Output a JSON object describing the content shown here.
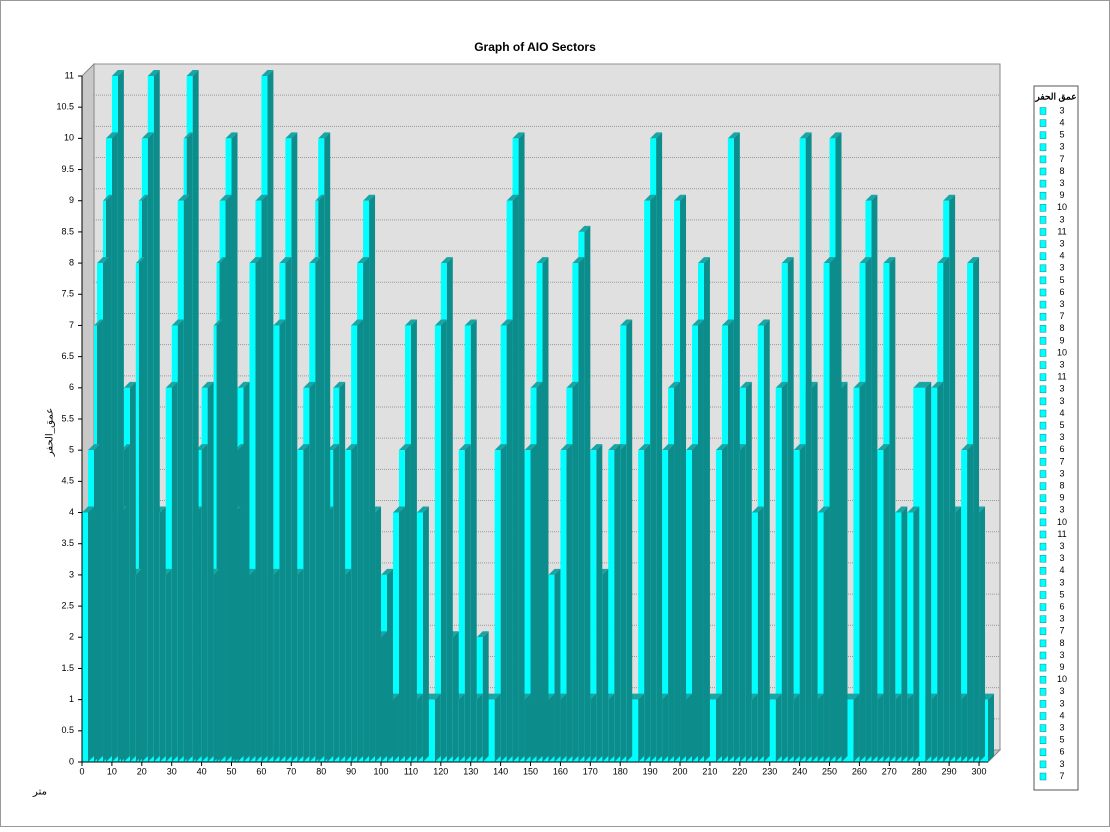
{
  "chart_data": {
    "type": "bar",
    "title": "Graph of AIO Sectors",
    "y_label": "عمق_الحفر",
    "x_label": "متر",
    "color": "#00ffff",
    "side_color": "#0d8c8c",
    "top_color": "#1aa5a5",
    "xlim": [
      0,
      303
    ],
    "ylim": [
      0,
      11
    ],
    "xticks": [
      0,
      10,
      20,
      30,
      40,
      50,
      60,
      70,
      80,
      90,
      100,
      110,
      120,
      130,
      140,
      150,
      160,
      170,
      180,
      190,
      200,
      210,
      220,
      230,
      240,
      250,
      260,
      270,
      280,
      290,
      300
    ],
    "yticks": [
      0,
      0.5,
      1,
      1.5,
      2,
      2.5,
      3,
      3.5,
      4,
      4.5,
      5,
      5.5,
      6,
      6.5,
      7,
      7.5,
      8,
      8.5,
      9,
      9.5,
      10,
      10.5,
      11
    ],
    "grid": true,
    "x": [
      0,
      2,
      4,
      5,
      7,
      8,
      10,
      12,
      13,
      14,
      16,
      18,
      19,
      20,
      22,
      24,
      26,
      28,
      30,
      32,
      34,
      35,
      37,
      38,
      40,
      42,
      44,
      45,
      46,
      48,
      50,
      51,
      52,
      54,
      56,
      58,
      60,
      62,
      64,
      66,
      68,
      70,
      72,
      74,
      76,
      78,
      79,
      81,
      82,
      84,
      86,
      88,
      90,
      92,
      94,
      96,
      98,
      100,
      102,
      104,
      106,
      108,
      110,
      112,
      114,
      118,
      120,
      122,
      124,
      126,
      128,
      130,
      132,
      134,
      138,
      140,
      142,
      144,
      146,
      148,
      150,
      152,
      154,
      156,
      158,
      160,
      162,
      164,
      166,
      168,
      170,
      172,
      174,
      176,
      178,
      180,
      182,
      186,
      188,
      190,
      192,
      194,
      196,
      198,
      200,
      202,
      204,
      206,
      208,
      212,
      214,
      216,
      218,
      220,
      222,
      224,
      226,
      228,
      232,
      234,
      236,
      238,
      240,
      242,
      244,
      246,
      248,
      250,
      252,
      254,
      258,
      260,
      262,
      264,
      266,
      268,
      270,
      272,
      274,
      276,
      278,
      282,
      284,
      286,
      288,
      290,
      292,
      294,
      296,
      298,
      300
    ],
    "values": [
      4,
      5,
      7,
      8,
      9,
      10,
      11,
      4,
      5,
      6,
      3,
      8,
      9,
      10,
      11,
      4,
      3,
      6,
      7,
      9,
      10,
      11,
      4,
      5,
      6,
      3,
      7,
      8,
      9,
      10,
      4,
      5,
      6,
      3,
      8,
      9,
      11,
      3,
      7,
      8,
      10,
      3,
      5,
      6,
      8,
      9,
      10,
      4,
      5,
      6,
      3,
      5,
      7,
      8,
      9,
      4,
      2,
      3,
      1,
      4,
      5,
      7,
      1,
      4,
      1,
      7,
      8,
      2,
      1,
      5,
      7,
      1,
      2,
      1,
      5,
      7,
      9,
      10,
      1,
      5,
      6,
      8,
      1,
      3,
      1,
      5,
      6,
      8,
      8.5,
      1,
      5,
      3,
      1,
      5,
      5,
      7,
      1,
      5,
      9,
      10,
      1,
      5,
      6,
      9,
      1,
      5,
      7,
      8,
      1,
      5,
      7,
      10,
      5,
      6,
      1,
      4,
      7,
      1,
      6,
      8,
      1,
      5,
      10,
      6,
      1,
      4,
      8,
      10,
      6,
      1,
      6,
      8,
      9,
      1,
      5,
      8,
      1,
      4,
      1,
      4,
      6,
      1,
      6,
      8,
      9,
      4,
      1,
      5,
      8,
      4,
      1
    ],
    "legend": {
      "title": "عمق الحفر",
      "items": [
        "3",
        "4",
        "5",
        "3",
        "7",
        "8",
        "3",
        "9",
        "10",
        "3",
        "11",
        "3",
        "4",
        "3",
        "5",
        "6",
        "3",
        "7",
        "8",
        "9",
        "10",
        "3",
        "11",
        "3",
        "3",
        "4",
        "5",
        "3",
        "6",
        "7",
        "3",
        "8",
        "9",
        "3",
        "10",
        "11",
        "3",
        "3",
        "4",
        "3",
        "5",
        "6",
        "3",
        "7",
        "8",
        "3",
        "9",
        "10",
        "3",
        "3",
        "4",
        "3",
        "5",
        "6",
        "3",
        "7"
      ]
    }
  }
}
